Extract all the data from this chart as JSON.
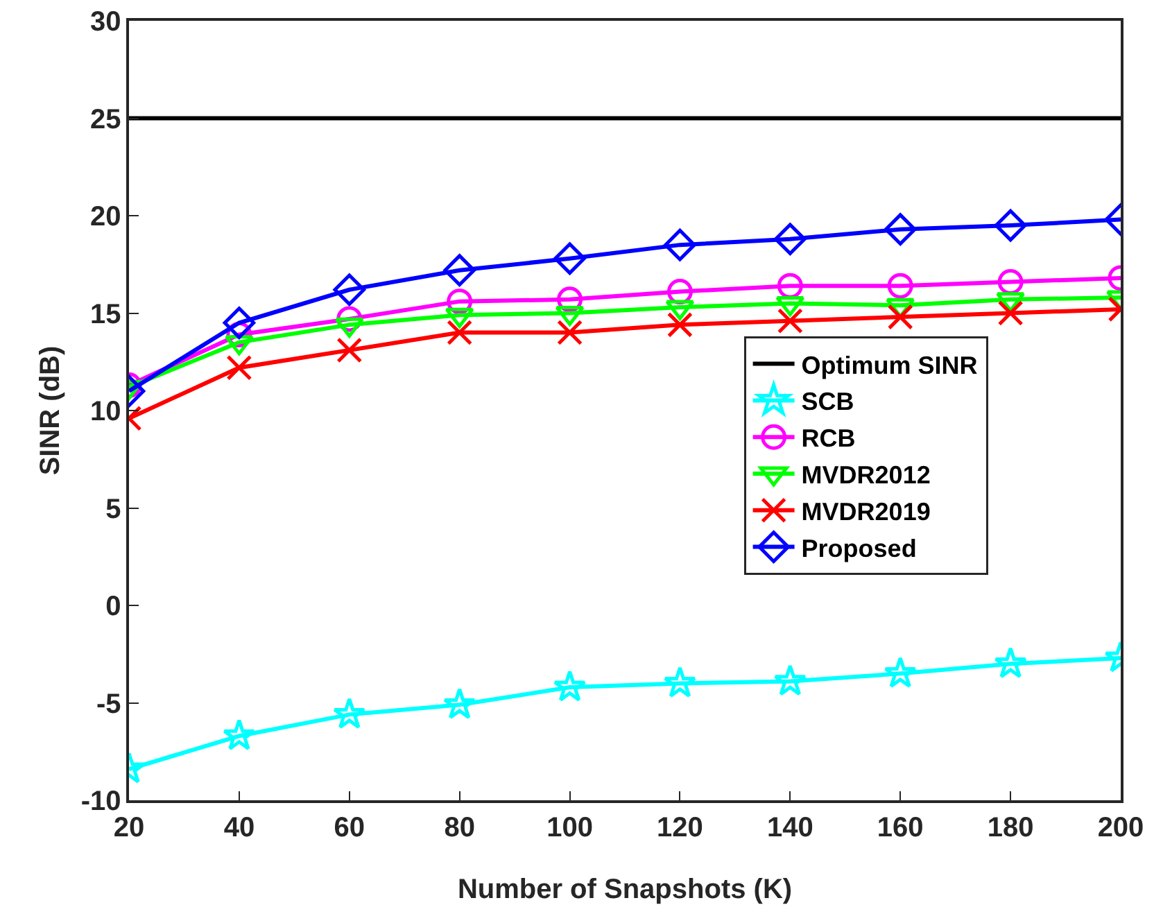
{
  "chart_data": {
    "type": "line",
    "xlabel": "Number of Snapshots (K)",
    "ylabel": "SINR (dB)",
    "x": [
      20,
      40,
      60,
      80,
      100,
      120,
      140,
      160,
      180,
      200
    ],
    "xlim": [
      20,
      200
    ],
    "xticks": [
      20,
      40,
      60,
      80,
      100,
      120,
      140,
      160,
      180,
      200
    ],
    "ylim": [
      -10,
      30
    ],
    "yticks": [
      -10,
      -5,
      0,
      5,
      10,
      15,
      20,
      25,
      30
    ],
    "grid": false,
    "legend": "right",
    "line_style": "solid",
    "series": [
      {
        "name": "Optimum SINR",
        "color": "#000000",
        "marker": "none",
        "values": [
          25,
          25,
          25,
          25,
          25,
          25,
          25,
          25,
          25,
          25
        ]
      },
      {
        "name": "SCB",
        "color": "#00ffff",
        "marker": "star",
        "values": [
          -8.4,
          -6.7,
          -5.6,
          -5.1,
          -4.2,
          -4.0,
          -3.9,
          -3.5,
          -3.0,
          -2.7
        ]
      },
      {
        "name": "RCB",
        "color": "#ff00ff",
        "marker": "circle",
        "values": [
          11.3,
          13.9,
          14.7,
          15.6,
          15.7,
          16.1,
          16.4,
          16.4,
          16.6,
          16.8
        ]
      },
      {
        "name": "MVDR2012",
        "color": "#00ff00",
        "marker": "triangle",
        "values": [
          11.2,
          13.5,
          14.4,
          14.9,
          15.0,
          15.3,
          15.5,
          15.4,
          15.7,
          15.8
        ]
      },
      {
        "name": "MVDR2019",
        "color": "#ff0000",
        "marker": "cross",
        "values": [
          9.6,
          12.2,
          13.1,
          14.0,
          14.0,
          14.4,
          14.6,
          14.8,
          15.0,
          15.2
        ]
      },
      {
        "name": "Proposed",
        "color": "#0000ff",
        "marker": "diamond",
        "values": [
          11.0,
          14.5,
          16.2,
          17.2,
          17.8,
          18.5,
          18.8,
          19.3,
          19.5,
          19.8
        ]
      }
    ]
  }
}
